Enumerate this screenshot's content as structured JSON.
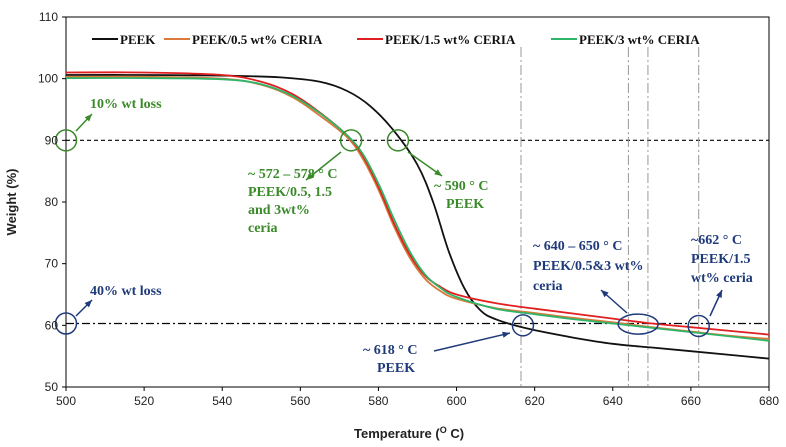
{
  "chart_data": {
    "type": "line",
    "title": "",
    "xlabel": "Temperature (",
    "xlabel_sup": "O",
    "xlabel_end": " C)",
    "ylabel": "Weight (%)",
    "xlim": [
      500,
      680
    ],
    "ylim": [
      50,
      110
    ],
    "xticks": [
      500,
      520,
      540,
      560,
      580,
      600,
      620,
      640,
      660,
      680
    ],
    "yticks": [
      50,
      60,
      70,
      80,
      90,
      100,
      110
    ],
    "series": [
      {
        "name": "PEEK",
        "color": "#111111",
        "points": [
          [
            500,
            100.6
          ],
          [
            520,
            100.6
          ],
          [
            540,
            100.5
          ],
          [
            555,
            100.2
          ],
          [
            565,
            99.5
          ],
          [
            572,
            98
          ],
          [
            578,
            95.5
          ],
          [
            584,
            91.5
          ],
          [
            590,
            86
          ],
          [
            594,
            80
          ],
          [
            598,
            72
          ],
          [
            602,
            66
          ],
          [
            606,
            62.5
          ],
          [
            610,
            61
          ],
          [
            618,
            59.5
          ],
          [
            630,
            58
          ],
          [
            640,
            57
          ],
          [
            650,
            56.4
          ],
          [
            660,
            55.8
          ],
          [
            670,
            55.2
          ],
          [
            680,
            54.6
          ]
        ]
      },
      {
        "name": "PEEK/0.5 wt% CERIA",
        "color": "#d97a3a",
        "points": [
          [
            500,
            100.3
          ],
          [
            520,
            100.3
          ],
          [
            540,
            100
          ],
          [
            550,
            99
          ],
          [
            558,
            97
          ],
          [
            565,
            94
          ],
          [
            572,
            90.5
          ],
          [
            576,
            87
          ],
          [
            580,
            82
          ],
          [
            584,
            76
          ],
          [
            588,
            71
          ],
          [
            592,
            67.5
          ],
          [
            596,
            65.5
          ],
          [
            600,
            64.3
          ],
          [
            610,
            62.8
          ],
          [
            620,
            62
          ],
          [
            630,
            61.2
          ],
          [
            640,
            60.5
          ],
          [
            650,
            59.7
          ],
          [
            660,
            59
          ],
          [
            670,
            58.3
          ],
          [
            680,
            57.8
          ]
        ]
      },
      {
        "name": "PEEK/1.5 wt% CERIA",
        "color": "#e02020",
        "points": [
          [
            500,
            101
          ],
          [
            520,
            101
          ],
          [
            540,
            100.6
          ],
          [
            550,
            99.5
          ],
          [
            558,
            97.5
          ],
          [
            565,
            94.5
          ],
          [
            572,
            90.8
          ],
          [
            576,
            87.5
          ],
          [
            580,
            82.5
          ],
          [
            584,
            76.5
          ],
          [
            588,
            71.5
          ],
          [
            592,
            68
          ],
          [
            596,
            66.2
          ],
          [
            600,
            65
          ],
          [
            610,
            63.6
          ],
          [
            620,
            62.7
          ],
          [
            630,
            61.9
          ],
          [
            640,
            61.1
          ],
          [
            650,
            60.3
          ],
          [
            660,
            59.7
          ],
          [
            670,
            59.1
          ],
          [
            680,
            58.5
          ]
        ]
      },
      {
        "name": "PEEK/3 wt% CERIA",
        "color": "#2fb56a",
        "points": [
          [
            500,
            100.1
          ],
          [
            520,
            100.1
          ],
          [
            540,
            99.9
          ],
          [
            550,
            99.1
          ],
          [
            558,
            97.2
          ],
          [
            565,
            94.4
          ],
          [
            572,
            90.8
          ],
          [
            576,
            87.8
          ],
          [
            580,
            83
          ],
          [
            584,
            77.2
          ],
          [
            588,
            72
          ],
          [
            592,
            68.2
          ],
          [
            596,
            66
          ],
          [
            600,
            64.6
          ],
          [
            610,
            62.7
          ],
          [
            620,
            61.8
          ],
          [
            630,
            61
          ],
          [
            640,
            60.3
          ],
          [
            650,
            59.6
          ],
          [
            660,
            58.9
          ],
          [
            670,
            58.2
          ],
          [
            680,
            57.5
          ]
        ]
      }
    ],
    "reference_lines": [
      {
        "axis": "y",
        "value": 90,
        "style": "dashed-black"
      },
      {
        "axis": "y",
        "value": 60.3,
        "style": "dashdot-black"
      },
      {
        "axis": "x",
        "value": 616.5,
        "style": "dashdot-gray"
      },
      {
        "axis": "x",
        "value": 644,
        "style": "dashdot-gray"
      },
      {
        "axis": "x",
        "value": 649,
        "style": "dashdot-gray"
      },
      {
        "axis": "x",
        "value": 662,
        "style": "dashdot-gray"
      }
    ],
    "markers": [
      {
        "id": "m-10wt-left",
        "x": 500,
        "y": 90,
        "color": "#3a8a2a",
        "shape": "circle"
      },
      {
        "id": "m-ceria-90",
        "x": 573,
        "y": 90,
        "color": "#3a8a2a",
        "shape": "circle"
      },
      {
        "id": "m-peek-90",
        "x": 585,
        "y": 90,
        "color": "#3a8a2a",
        "shape": "circle"
      },
      {
        "id": "m-40wt-left",
        "x": 500,
        "y": 60.3,
        "color": "#1f3a7a",
        "shape": "circle"
      },
      {
        "id": "m-peek-60",
        "x": 617,
        "y": 60,
        "color": "#1f3a7a",
        "shape": "circle"
      },
      {
        "id": "m-ceria-60",
        "x": 646.5,
        "y": 60.2,
        "color": "#1f3a7a",
        "shape": "ellipse"
      },
      {
        "id": "m-15-60",
        "x": 662,
        "y": 59.9,
        "color": "#1f3a7a",
        "shape": "circle"
      }
    ],
    "annotations": [
      {
        "id": "a-10wt",
        "color": "#3a8a2a",
        "lines": [
          "10% wt loss"
        ]
      },
      {
        "id": "a-ceria",
        "color": "#3a8a2a",
        "lines": [
          "~ 572 – 578 ° C",
          "PEEK/0.5, 1.5",
          "and 3wt%",
          "ceria"
        ]
      },
      {
        "id": "a-peek590",
        "color": "#3a8a2a",
        "lines": [
          "~ 590 ° C",
          "PEEK"
        ]
      },
      {
        "id": "a-40wt",
        "color": "#1f3a7a",
        "lines": [
          "40% wt loss"
        ]
      },
      {
        "id": "a-peek618",
        "color": "#1f3a7a",
        "lines": [
          "~ 618 ° C",
          "PEEK"
        ]
      },
      {
        "id": "a-640",
        "color": "#1f3a7a",
        "lines": [
          "~ 640 – 650 ° C",
          "PEEK/0.5&3 wt%",
          "ceria"
        ]
      },
      {
        "id": "a-662",
        "color": "#1f3a7a",
        "lines": [
          "~662 ° C",
          "PEEK/1.5",
          "wt% ceria"
        ]
      }
    ]
  }
}
